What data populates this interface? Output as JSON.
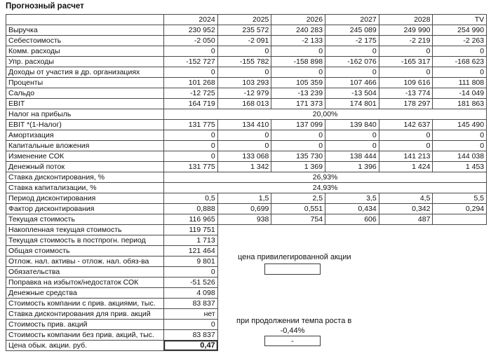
{
  "title": "Прогнозный расчет",
  "colors": {
    "background": "#ffffff",
    "text": "#111111",
    "border": "#4a4a4a",
    "box_border": "#3c3c3c"
  },
  "table": {
    "columns": [
      "2024",
      "2025",
      "2026",
      "2027",
      "2028",
      "TV"
    ],
    "rows": [
      {
        "type": "header",
        "label": "",
        "values": [
          "2024",
          "2025",
          "2026",
          "2027",
          "2028",
          "TV"
        ]
      },
      {
        "type": "data",
        "label": "Выручка",
        "values": [
          "230 952",
          "235 572",
          "240 283",
          "245 089",
          "249 990",
          "254 990"
        ]
      },
      {
        "type": "data",
        "label": "Себестоимость",
        "values": [
          "-2 050",
          "-2 091",
          "-2 133",
          "-2 175",
          "-2 219",
          "-2 263"
        ]
      },
      {
        "type": "data",
        "label": "Комм. расходы",
        "values": [
          "0",
          "0",
          "0",
          "0",
          "0",
          "0"
        ]
      },
      {
        "type": "data",
        "label": "Упр. расходы",
        "values": [
          "-152 727",
          "-155 782",
          "-158 898",
          "-162 076",
          "-165 317",
          "-168 623"
        ]
      },
      {
        "type": "data",
        "label": "Доходы от участия в др. организациях",
        "values": [
          "0",
          "0",
          "0",
          "0",
          "0",
          "0"
        ]
      },
      {
        "type": "data",
        "label": "Проценты",
        "values": [
          "101 268",
          "103 293",
          "105 359",
          "107 466",
          "109 616",
          "111 808"
        ]
      },
      {
        "type": "data",
        "label": "Сальдо",
        "values": [
          "-12 725",
          "-12 979",
          "-13 239",
          "-13 504",
          "-13 774",
          "-14 049"
        ]
      },
      {
        "type": "data",
        "label": "EBIT",
        "values": [
          "164 719",
          "168 013",
          "171 373",
          "174 801",
          "178 297",
          "181 863"
        ]
      },
      {
        "type": "merged",
        "label": "Налог на прибыль",
        "value": "20,00%"
      },
      {
        "type": "data",
        "label": "EBIT *(1-Налог)",
        "values": [
          "131 775",
          "134 410",
          "137 099",
          "139 840",
          "142 637",
          "145 490"
        ]
      },
      {
        "type": "data",
        "label": "Амортизация",
        "values": [
          "0",
          "0",
          "0",
          "0",
          "0",
          "0"
        ]
      },
      {
        "type": "data",
        "label": "Капитальные вложения",
        "values": [
          "0",
          "0",
          "0",
          "0",
          "0",
          "0"
        ]
      },
      {
        "type": "data",
        "label": "Изменение СОК",
        "values": [
          "0",
          "133 068",
          "135 730",
          "138 444",
          "141 213",
          "144 038"
        ]
      },
      {
        "type": "data",
        "label": "Денежный поток",
        "values": [
          "131 775",
          "1 342",
          "1 369",
          "1 396",
          "1 424",
          "1 453"
        ]
      },
      {
        "type": "merged",
        "label": "Ставка дисконтирования, %",
        "value": "26,93%"
      },
      {
        "type": "merged",
        "label": "Ставка капитализации, %",
        "value": "24,93%"
      },
      {
        "type": "data",
        "label": "Период дисконтирования",
        "values": [
          "0,5",
          "1,5",
          "2,5",
          "3,5",
          "4,5",
          "5,5"
        ]
      },
      {
        "type": "data",
        "label": "Фактор дисконтирования",
        "values": [
          "0,888",
          "0,699",
          "0,551",
          "0,434",
          "0,342",
          "0,294"
        ]
      },
      {
        "type": "data",
        "label": "Текущая стоимость",
        "values": [
          "116 965",
          "938",
          "754",
          "606",
          "487",
          ""
        ]
      },
      {
        "type": "single",
        "label": "Накопленная текущая стоимость",
        "value": "119 751"
      },
      {
        "type": "single",
        "label": "Текущая стоимость в постпрогн. период",
        "value": "1 713"
      },
      {
        "type": "single",
        "label": "Общая стоимость",
        "value": "121 464"
      },
      {
        "type": "single",
        "label": "Отлож. нал. активы - отлож. нал. обяз-ва",
        "value": "9 801"
      },
      {
        "type": "single",
        "label": "Обязательства",
        "value": "0"
      },
      {
        "type": "single",
        "label": "Поправка на избыток/недостаток СОК",
        "value": "-51 526"
      },
      {
        "type": "single",
        "label": "Денежные средства",
        "value": "4 098"
      },
      {
        "type": "single",
        "label": "Стоимость компании с прив. акциями, тыс.",
        "value": "83 837"
      },
      {
        "type": "single",
        "label": "Ставка дисконтирования для прив. акций",
        "value": "нет"
      },
      {
        "type": "single",
        "label": "Стоимость прив. акций",
        "value": "0"
      },
      {
        "type": "single",
        "label": "Стоимость компании без прив. акций, тыс.",
        "value": "83 837"
      },
      {
        "type": "single",
        "label": "Цена обык. акции. руб.",
        "value": "0,47",
        "bold": true,
        "thick": true
      }
    ]
  },
  "annotations": {
    "pref_share_label": "цена привилегированной акции",
    "pref_share_box_value": "",
    "growth_label": "при продолжении темпа роста в",
    "growth_rate": "-0,44%",
    "growth_box_value": "-"
  }
}
